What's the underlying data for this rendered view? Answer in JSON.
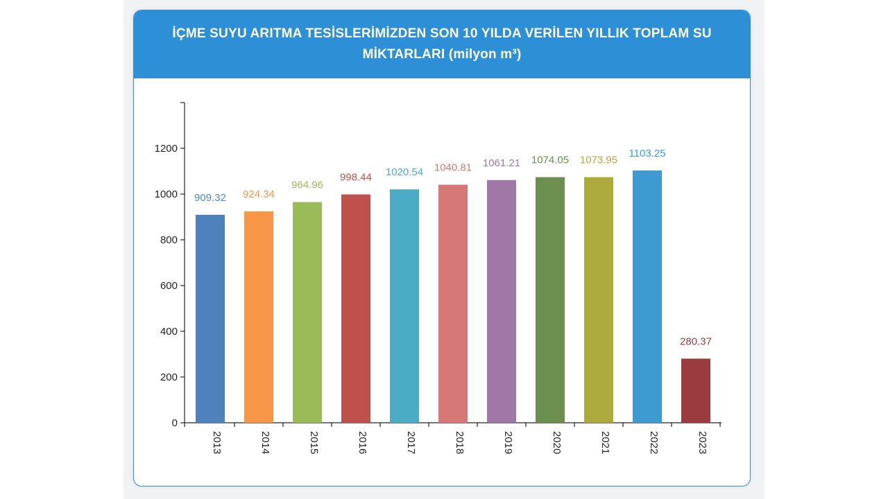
{
  "header": {
    "title": "İÇME SUYU ARITMA TESİSLERİMİZDEN SON 10 YILDA VERİLEN YILLIK TOPLAM SU MİKTARLARI (milyon m³)"
  },
  "chart_data": {
    "type": "bar",
    "title": "İÇME SUYU ARITMA TESİSLERİMİZDEN SON 10 YILDA VERİLEN YILLIK TOPLAM SU MİKTARLARI (milyon m³)",
    "xlabel": "",
    "ylabel": "",
    "categories": [
      "2013",
      "2014",
      "2015",
      "2016",
      "2017",
      "2018",
      "2019",
      "2020",
      "2021",
      "2022",
      "2023"
    ],
    "values": [
      909.32,
      924.34,
      964.96,
      998.44,
      1020.54,
      1040.81,
      1061.21,
      1074.05,
      1073.95,
      1103.25,
      280.37
    ],
    "value_labels": [
      "909.32",
      "924.34",
      "964.96",
      "998.44",
      "1020.54",
      "1040.81",
      "1061.21",
      "1074.05",
      "1073.95",
      "1103.25",
      "280.37"
    ],
    "colors": [
      "#4f81bd",
      "#f79646",
      "#9bbb59",
      "#c0504d",
      "#4bacc6",
      "#d67876",
      "#a077a6",
      "#6b8f4e",
      "#adab3e",
      "#3d9bd2",
      "#9b3b3f"
    ],
    "label_colors": [
      "#4f81bd",
      "#f79646",
      "#9bbb59",
      "#c0504d",
      "#4bacc6",
      "#d67876",
      "#a077a6",
      "#6b8f4e",
      "#adab3e",
      "#3d9bd2",
      "#9b3b3f"
    ],
    "yticks": [
      "0",
      "200",
      "400",
      "600",
      "800",
      "1000",
      "1200"
    ],
    "ylim": [
      0,
      1400
    ],
    "grid": false,
    "legend": "none"
  }
}
